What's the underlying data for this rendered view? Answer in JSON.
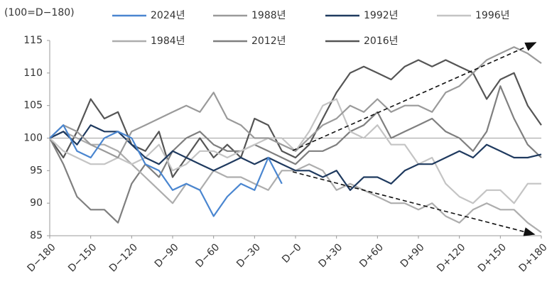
{
  "chart_data": {
    "type": "line",
    "y_axis_label": "(100=D−180)",
    "x": [
      -180,
      -170,
      -160,
      -150,
      -140,
      -130,
      -120,
      -110,
      -100,
      -90,
      -80,
      -70,
      -60,
      -50,
      -40,
      -30,
      -20,
      -10,
      0,
      10,
      20,
      30,
      40,
      50,
      60,
      70,
      80,
      90,
      100,
      110,
      120,
      130,
      140,
      150,
      160,
      170,
      180
    ],
    "xlim": [
      -180,
      180
    ],
    "xticks": [
      {
        "value": -180,
        "label": "D−180"
      },
      {
        "value": -150,
        "label": "D−150"
      },
      {
        "value": -120,
        "label": "D−120"
      },
      {
        "value": -90,
        "label": "D−90"
      },
      {
        "value": -60,
        "label": "D−60"
      },
      {
        "value": -30,
        "label": "D−30"
      },
      {
        "value": 0,
        "label": "D−0"
      },
      {
        "value": 30,
        "label": "D+30"
      },
      {
        "value": 60,
        "label": "D+60"
      },
      {
        "value": 90,
        "label": "D+90"
      },
      {
        "value": 120,
        "label": "D+120"
      },
      {
        "value": 150,
        "label": "D+150"
      },
      {
        "value": 180,
        "label": "D+180"
      }
    ],
    "ylim": [
      85,
      115
    ],
    "yticks": [
      85,
      90,
      95,
      100,
      105,
      110,
      115
    ],
    "reference_line": 100,
    "series": [
      {
        "name": "2024년",
        "color": "#4a86d0",
        "values": [
          100,
          102,
          98,
          97,
          100,
          101,
          100,
          96,
          95,
          92,
          93,
          92,
          88,
          91,
          93,
          92,
          97,
          93,
          null,
          null,
          null,
          null,
          null,
          null,
          null,
          null,
          null,
          null,
          null,
          null,
          null,
          null,
          null,
          null,
          null,
          null,
          null
        ]
      },
      {
        "name": "1988년",
        "color": "#9a9a9a",
        "values": [
          100,
          102,
          101,
          99,
          98,
          97,
          101,
          102,
          103,
          104,
          105,
          104,
          107,
          103,
          102,
          100,
          100,
          99,
          98,
          100,
          102,
          103,
          105,
          104,
          106,
          104,
          105,
          105,
          104,
          107,
          108,
          110,
          112,
          113,
          114,
          113,
          111.5
        ]
      },
      {
        "name": "1992년",
        "color": "#1f3a5f",
        "values": [
          100,
          101,
          99,
          102,
          101,
          101,
          99,
          97,
          96,
          98,
          97,
          96,
          95,
          96,
          97,
          96,
          97,
          96,
          95,
          95,
          94,
          95,
          92,
          94,
          94,
          93,
          95,
          96,
          96,
          97,
          98,
          97,
          99,
          98,
          97,
          97,
          97.5
        ]
      },
      {
        "name": "1996년",
        "color": "#c4c4c4",
        "values": [
          100,
          98,
          97,
          96,
          96,
          97,
          96,
          97,
          99,
          95,
          96,
          98,
          98,
          97,
          98,
          99,
          100,
          100,
          98,
          101,
          105,
          106,
          101,
          100,
          102,
          99,
          99,
          96,
          97,
          93,
          91,
          90,
          92,
          92,
          90,
          93,
          93
        ]
      },
      {
        "name": "1984년",
        "color": "#adadad",
        "values": [
          100,
          101,
          100,
          99,
          99,
          98,
          96,
          94,
          92,
          90,
          93,
          92,
          95,
          94,
          94,
          93,
          92,
          95,
          95,
          96,
          95,
          92,
          93,
          92,
          91,
          90,
          90,
          89,
          90,
          88,
          87,
          89,
          90,
          89,
          89,
          87,
          85.5
        ]
      },
      {
        "name": "2012년",
        "color": "#7f7f7f",
        "values": [
          100,
          96,
          91,
          89,
          89,
          87,
          93,
          96,
          94,
          98,
          100,
          101,
          99,
          98,
          98,
          99,
          98,
          97,
          96,
          98,
          98,
          99,
          101,
          102,
          104,
          100,
          101,
          102,
          103,
          101,
          100,
          98,
          101,
          108,
          103,
          99,
          97
        ]
      },
      {
        "name": "2016년",
        "color": "#555555",
        "values": [
          100,
          97,
          101,
          106,
          103,
          104,
          99,
          98,
          101,
          94,
          97,
          100,
          97,
          99,
          97,
          103,
          102,
          98,
          97,
          99,
          103,
          107,
          110,
          111,
          110,
          109,
          111,
          112,
          111,
          112,
          111,
          110,
          106,
          109,
          110,
          105,
          102
        ]
      }
    ]
  }
}
